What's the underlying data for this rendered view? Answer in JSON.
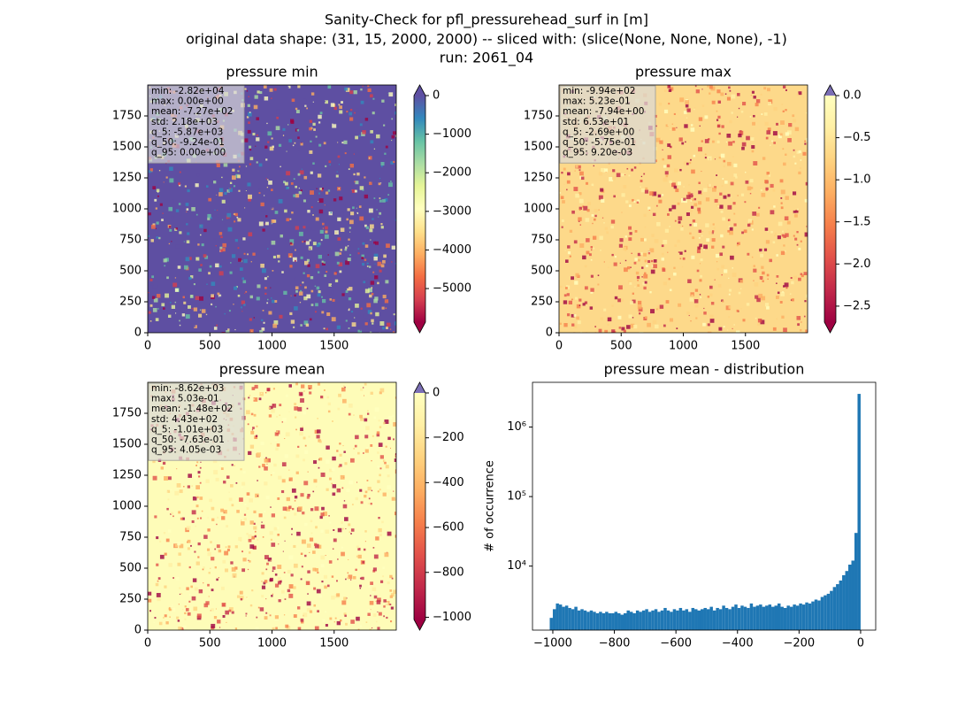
{
  "suptitle": [
    "Sanity-Check for pfl_pressurehead_surf in [m]",
    "original data shape: (31, 15, 2000, 2000) -- sliced with: (slice(None, None, None), -1)",
    "run: 2061_04"
  ],
  "chart_data": [
    {
      "type": "heatmap",
      "title": "pressure min",
      "xlim": [
        0,
        2000
      ],
      "ylim": [
        0,
        2000
      ],
      "xticks": [
        0,
        500,
        1000,
        1500
      ],
      "yticks": [
        0,
        250,
        500,
        750,
        1000,
        1250,
        1500,
        1750
      ],
      "background": "#5e4fa2",
      "colormap": [
        "#9e0142",
        "#d53e4f",
        "#f46d43",
        "#fdae61",
        "#fee08b",
        "#ffffbf",
        "#e6f598",
        "#abdda4",
        "#66c2a5",
        "#3288bd",
        "#5e4fa2"
      ],
      "colorbar": {
        "lim": [
          -5870,
          0
        ],
        "under_color": "#9e0142",
        "over_color": "#5e4fa2",
        "ticks": [
          0,
          {
            "value": -1000,
            "label": "−1000"
          },
          {
            "value": -2000,
            "label": "−2000"
          },
          {
            "value": -3000,
            "label": "−3000"
          },
          {
            "value": -4000,
            "label": "−4000"
          },
          {
            "value": -5000,
            "label": "−5000"
          }
        ]
      },
      "stats": [
        "min: -2.82e+04",
        "max: 0.00e+00",
        "mean: -7.27e+02",
        "std: 2.18e+03",
        "q_5: -5.87e+03",
        "q_50: -9.24e-01",
        "q_95: 0.00e+00"
      ]
    },
    {
      "type": "heatmap",
      "title": "pressure max",
      "xlim": [
        0,
        2000
      ],
      "ylim": [
        0,
        2000
      ],
      "xticks": [
        0,
        500,
        1000,
        1500
      ],
      "yticks": [
        0,
        250,
        500,
        750,
        1000,
        1250,
        1500,
        1750
      ],
      "background": "#fdd98a",
      "colormap": [
        "#9e0142",
        "#c2294a",
        "#e2514a",
        "#f67f4b",
        "#fdae61",
        "#fed27f",
        "#ffefa4",
        "#ffffbf"
      ],
      "colorbar": {
        "lim": [
          -2.69,
          0
        ],
        "under_color": "#9e0142",
        "over_color": "#7b6fb5",
        "ticks": [
          {
            "value": 0,
            "label": "0.0"
          },
          {
            "value": -0.5,
            "label": "−0.5"
          },
          {
            "value": -1,
            "label": "−1.0"
          },
          {
            "value": -1.5,
            "label": "−1.5"
          },
          {
            "value": -2,
            "label": "−2.0"
          },
          {
            "value": -2.5,
            "label": "−2.5"
          }
        ]
      },
      "stats": [
        "min: -9.94e+02",
        "max: 5.23e-01",
        "mean: -7.94e+00",
        "std: 6.53e+01",
        "q_5: -2.69e+00",
        "q_50: -5.75e-01",
        "q_95: 9.20e-03"
      ]
    },
    {
      "type": "heatmap",
      "title": "pressure mean",
      "xlim": [
        0,
        2000
      ],
      "ylim": [
        0,
        2000
      ],
      "xticks": [
        0,
        500,
        1000,
        1500
      ],
      "yticks": [
        0,
        250,
        500,
        750,
        1000,
        1250,
        1500,
        1750
      ],
      "background": "#fefcb8",
      "colormap": [
        "#9e0142",
        "#c2294a",
        "#e2514a",
        "#f67f4b",
        "#fdae61",
        "#fed27f",
        "#ffefa4",
        "#ffffbf"
      ],
      "colorbar": {
        "lim": [
          -1010,
          0
        ],
        "under_color": "#9e0142",
        "over_color": "#7b6fb5",
        "ticks": [
          0,
          {
            "value": -200,
            "label": "−200"
          },
          {
            "value": -400,
            "label": "−400"
          },
          {
            "value": -600,
            "label": "−600"
          },
          {
            "value": -800,
            "label": "−800"
          },
          {
            "value": -1000,
            "label": "−1000"
          }
        ]
      },
      "stats": [
        "min: -8.62e+03",
        "max: 5.03e-01",
        "mean: -1.48e+02",
        "std: 4.43e+02",
        "q_5: -1.01e+03",
        "q_50: -7.63e-01",
        "q_95: 4.05e-03"
      ]
    },
    {
      "type": "histogram",
      "title": "pressure mean - distribution",
      "ylabel": "# of occurrence",
      "log_y": true,
      "color": "#1f77b4",
      "xlim": [
        -1066,
        49
      ],
      "ylim": [
        1200,
        4400000
      ],
      "xticks": [
        {
          "value": -1000,
          "label": "−1000"
        },
        {
          "value": -800,
          "label": "−800"
        },
        {
          "value": -600,
          "label": "−600"
        },
        {
          "value": -400,
          "label": "−400"
        },
        {
          "value": -200,
          "label": "−200"
        },
        0
      ],
      "yticks": [
        {
          "value": 10000,
          "label": "10⁴"
        },
        {
          "value": 100000,
          "label": "10⁵"
        },
        {
          "value": 1000000,
          "label": "10⁶"
        }
      ],
      "bins": [
        -1010,
        -1000,
        -990,
        -980,
        -970,
        -960,
        -950,
        -940,
        -930,
        -920,
        -910,
        -900,
        -890,
        -880,
        -870,
        -860,
        -850,
        -840,
        -830,
        -820,
        -810,
        -800,
        -790,
        -780,
        -770,
        -760,
        -750,
        -740,
        -730,
        -720,
        -710,
        -700,
        -690,
        -680,
        -670,
        -660,
        -650,
        -640,
        -630,
        -620,
        -610,
        -600,
        -590,
        -580,
        -570,
        -560,
        -550,
        -540,
        -530,
        -520,
        -510,
        -500,
        -490,
        -480,
        -470,
        -460,
        -450,
        -440,
        -430,
        -420,
        -410,
        -400,
        -390,
        -380,
        -370,
        -360,
        -350,
        -340,
        -330,
        -320,
        -310,
        -300,
        -290,
        -280,
        -270,
        -260,
        -250,
        -240,
        -230,
        -220,
        -210,
        -200,
        -190,
        -180,
        -170,
        -160,
        -150,
        -140,
        -130,
        -120,
        -110,
        -100,
        -90,
        -80,
        -70,
        -60,
        -50,
        -40,
        -30,
        -20,
        -10,
        0
      ],
      "counts": [
        1800,
        2400,
        2900,
        2800,
        2600,
        2700,
        2500,
        2400,
        2600,
        2300,
        2400,
        2300,
        2200,
        2300,
        2200,
        2100,
        2200,
        2100,
        2200,
        2100,
        2100,
        2200,
        2100,
        2000,
        2100,
        2300,
        2200,
        2100,
        2300,
        2200,
        2300,
        2400,
        2200,
        2300,
        2400,
        2200,
        2300,
        2500,
        2300,
        2200,
        2400,
        2300,
        2500,
        2300,
        2400,
        2200,
        2500,
        2400,
        2300,
        2400,
        2500,
        2400,
        2600,
        2300,
        2500,
        2400,
        2700,
        2500,
        2400,
        2600,
        2800,
        2500,
        2700,
        2600,
        2500,
        2900,
        2600,
        2700,
        2800,
        2600,
        2700,
        2800,
        2600,
        2700,
        2900,
        2600,
        2500,
        2700,
        2600,
        2800,
        2700,
        2900,
        2800,
        3000,
        2900,
        3100,
        3300,
        3200,
        3600,
        3800,
        4000,
        4400,
        5000,
        5500,
        6200,
        7400,
        8500,
        10500,
        12000,
        30000,
        3000000
      ]
    }
  ]
}
